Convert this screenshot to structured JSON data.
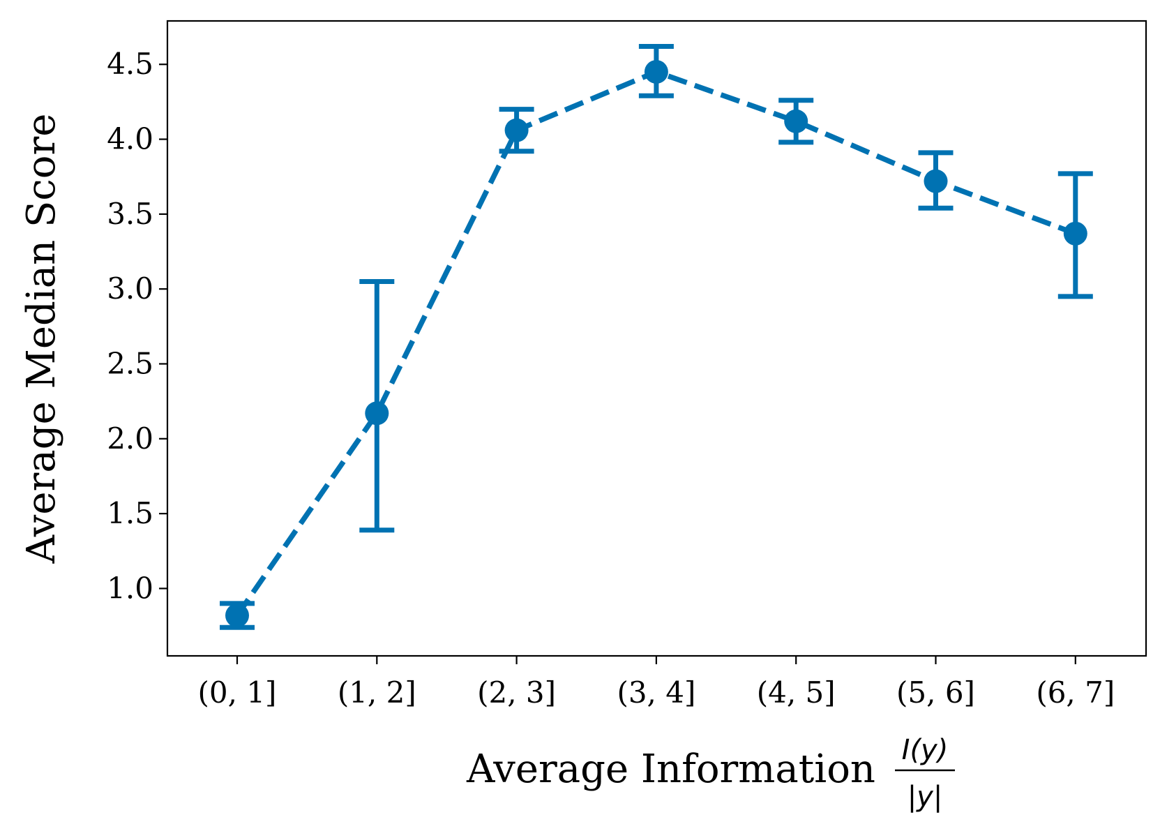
{
  "chart_data": {
    "type": "line",
    "categories": [
      "(0, 1]",
      "(1, 2]",
      "(2, 3]",
      "(3, 4]",
      "(4, 5]",
      "(5, 6]",
      "(6, 7]"
    ],
    "series": [
      {
        "values": [
          0.82,
          2.17,
          4.06,
          4.45,
          4.12,
          3.72,
          3.37
        ],
        "err_low": [
          0.74,
          1.39,
          3.92,
          4.29,
          3.98,
          3.54,
          2.95
        ],
        "err_high": [
          0.9,
          3.05,
          4.2,
          4.62,
          4.26,
          3.91,
          3.77
        ],
        "color": "#0072b2",
        "linestyle": "dashed",
        "marker": "circle"
      }
    ],
    "xlabel": "Average Information",
    "xlabel_math": {
      "numerator": "I(y)",
      "denominator": "|y|"
    },
    "ylabel": "Average Median Score",
    "ylim": [
      0.55,
      4.79
    ],
    "yticks": [
      "1.0",
      "1.5",
      "2.0",
      "2.5",
      "3.0",
      "3.5",
      "4.0",
      "4.5"
    ],
    "ytick_values": [
      1.0,
      1.5,
      2.0,
      2.5,
      3.0,
      3.5,
      4.0,
      4.5
    ],
    "grid": false,
    "legend": "none"
  }
}
